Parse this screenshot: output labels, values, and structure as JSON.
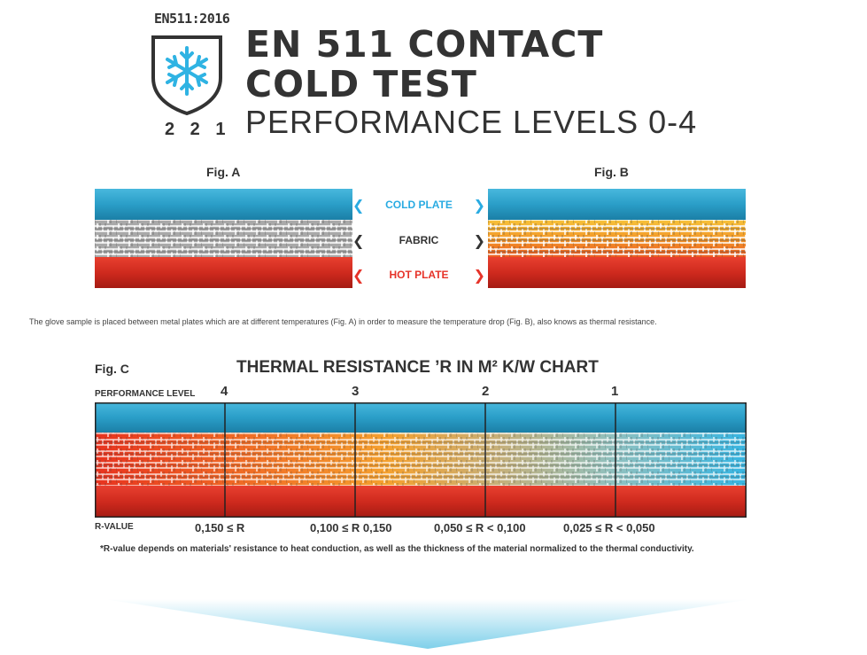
{
  "badge": {
    "code": "EN511:2016",
    "rating": "2 2 1",
    "icon": "snowflake-icon"
  },
  "header": {
    "title_line1": "EN 511 CONTACT",
    "title_line2": "COLD TEST",
    "title_line3": "PERFORMANCE LEVELS 0-4"
  },
  "figures": {
    "fig_a": "Fig. A",
    "fig_b": "Fig. B",
    "legend": {
      "cold_plate": "COLD PLATE",
      "fabric": "FABRIC",
      "hot_plate": "HOT PLATE"
    }
  },
  "caption": "The glove sample is placed between metal plates which are at different temperatures (Fig. A) in order to measure the temperature drop (Fig. B), also knows as thermal resistance.",
  "chart": {
    "fig_c": "Fig. C",
    "title": "THERMAL RESISTANCE ’R IN M² K/W CHART",
    "performance_label": "PERFORMANCE LEVEL",
    "levels": [
      "4",
      "3",
      "2",
      "1"
    ],
    "r_value_label": "R-VALUE",
    "r_values": [
      "0,150 ≤ R",
      "0,100 ≤ R 0,150",
      "0,050 ≤ R < 0,100",
      "0,025 ≤ R < 0,050"
    ],
    "footnote": "*R-value depends on materials' resistance to heat conduction, as well as the thickness of the material normalized to the thermal conductivity."
  },
  "colors": {
    "cold": "#2aa0c9",
    "hot": "#d32a1f",
    "fabric_grey": "#b8b8b8",
    "legend_cold_text": "#29abe2",
    "legend_hot_text": "#e63329",
    "dark_text": "#333333"
  }
}
